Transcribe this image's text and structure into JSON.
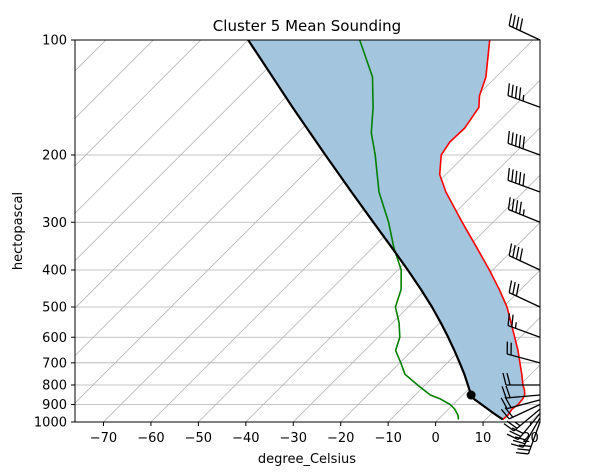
{
  "chart_data": {
    "type": "skew-t",
    "title": "Cluster 5 Mean Sounding",
    "xlabel": "degree_Celsius",
    "ylabel": "hectopascal",
    "xlim": [
      -76,
      22
    ],
    "ylim": [
      1000,
      100
    ],
    "y_scale": "log",
    "x_ticks": [
      -70,
      -60,
      -50,
      -40,
      -30,
      -20,
      -10,
      0,
      10,
      20
    ],
    "y_ticks": [
      1000,
      900,
      800,
      700,
      600,
      500,
      400,
      300,
      200,
      100
    ],
    "grid": true,
    "colors": {
      "temperature": "#ff0000",
      "dewpoint": "#008000",
      "parcel": "#000000",
      "cape_fill": "#a3c6de",
      "grid": "#b0b0b0",
      "isotherm": "#b3b3b3"
    },
    "temperature": [
      {
        "p": 985,
        "t": 13.6
      },
      {
        "p": 960,
        "t": 13.8
      },
      {
        "p": 925,
        "t": 13.4
      },
      {
        "p": 900,
        "t": 13.7
      },
      {
        "p": 870,
        "t": 13.5
      },
      {
        "p": 850,
        "t": 13.1
      },
      {
        "p": 825,
        "t": 12.0
      },
      {
        "p": 800,
        "t": 10.6
      },
      {
        "p": 750,
        "t": 8.1
      },
      {
        "p": 700,
        "t": 5.3
      },
      {
        "p": 650,
        "t": 2.3
      },
      {
        "p": 600,
        "t": -1.2
      },
      {
        "p": 550,
        "t": -5.0
      },
      {
        "p": 500,
        "t": -9.2
      },
      {
        "p": 450,
        "t": -14.5
      },
      {
        "p": 400,
        "t": -20.7
      },
      {
        "p": 350,
        "t": -28.0
      },
      {
        "p": 300,
        "t": -36.5
      },
      {
        "p": 250,
        "t": -46.3
      },
      {
        "p": 225,
        "t": -51.3
      },
      {
        "p": 200,
        "t": -55.1
      },
      {
        "p": 185,
        "t": -56.0
      },
      {
        "p": 170,
        "t": -55.8
      },
      {
        "p": 150,
        "t": -57.2
      },
      {
        "p": 140,
        "t": -59.5
      },
      {
        "p": 125,
        "t": -62.1
      },
      {
        "p": 100,
        "t": -69.1
      }
    ],
    "dewpoint": [
      {
        "p": 985,
        "t": 4.3
      },
      {
        "p": 960,
        "t": 3.3
      },
      {
        "p": 925,
        "t": 1.3
      },
      {
        "p": 900,
        "t": -0.6
      },
      {
        "p": 870,
        "t": -3.9
      },
      {
        "p": 850,
        "t": -6.8
      },
      {
        "p": 800,
        "t": -11.6
      },
      {
        "p": 750,
        "t": -16.5
      },
      {
        "p": 700,
        "t": -19.8
      },
      {
        "p": 650,
        "t": -23.5
      },
      {
        "p": 600,
        "t": -25.4
      },
      {
        "p": 550,
        "t": -28.6
      },
      {
        "p": 500,
        "t": -32.7
      },
      {
        "p": 450,
        "t": -35.2
      },
      {
        "p": 400,
        "t": -39.3
      },
      {
        "p": 350,
        "t": -45.5
      },
      {
        "p": 300,
        "t": -52.0
      },
      {
        "p": 250,
        "t": -60.4
      },
      {
        "p": 200,
        "t": -69.0
      },
      {
        "p": 175,
        "t": -74.5
      },
      {
        "p": 150,
        "t": -79.5
      },
      {
        "p": 125,
        "t": -86.0
      },
      {
        "p": 100,
        "t": -96.5
      }
    ],
    "parcel": [
      {
        "p": 985,
        "t": 13.6
      },
      {
        "p": 950,
        "t": 10.5
      },
      {
        "p": 900,
        "t": 6.0
      },
      {
        "p": 870,
        "t": 3.2
      },
      {
        "p": 850,
        "t": 1.8
      },
      {
        "p": 800,
        "t": -1.0
      },
      {
        "p": 750,
        "t": -4.0
      },
      {
        "p": 700,
        "t": -7.4
      },
      {
        "p": 650,
        "t": -11.1
      },
      {
        "p": 600,
        "t": -15.2
      },
      {
        "p": 550,
        "t": -19.8
      },
      {
        "p": 500,
        "t": -25.0
      },
      {
        "p": 450,
        "t": -31.0
      },
      {
        "p": 400,
        "t": -37.9
      },
      {
        "p": 350,
        "t": -45.9
      },
      {
        "p": 300,
        "t": -55.2
      },
      {
        "p": 250,
        "t": -66.2
      },
      {
        "p": 200,
        "t": -79.5
      },
      {
        "p": 150,
        "t": -96.5
      },
      {
        "p": 100,
        "t": -120.0
      }
    ],
    "lcl": {
      "p": 850,
      "t": 1.8
    },
    "wind_barbs": [
      {
        "p": 1000,
        "speed_kt": 30,
        "dir_deg": 200
      },
      {
        "p": 975,
        "speed_kt": 30,
        "dir_deg": 210
      },
      {
        "p": 950,
        "speed_kt": 30,
        "dir_deg": 220
      },
      {
        "p": 925,
        "speed_kt": 25,
        "dir_deg": 230
      },
      {
        "p": 900,
        "speed_kt": 20,
        "dir_deg": 245
      },
      {
        "p": 875,
        "speed_kt": 20,
        "dir_deg": 255
      },
      {
        "p": 850,
        "speed_kt": 20,
        "dir_deg": 265
      },
      {
        "p": 800,
        "speed_kt": 20,
        "dir_deg": 270
      },
      {
        "p": 700,
        "speed_kt": 20,
        "dir_deg": 285
      },
      {
        "p": 600,
        "speed_kt": 25,
        "dir_deg": 290
      },
      {
        "p": 500,
        "speed_kt": 30,
        "dir_deg": 295
      },
      {
        "p": 400,
        "speed_kt": 40,
        "dir_deg": 295
      },
      {
        "p": 300,
        "speed_kt": 45,
        "dir_deg": 292
      },
      {
        "p": 250,
        "speed_kt": 50,
        "dir_deg": 290
      },
      {
        "p": 200,
        "speed_kt": 50,
        "dir_deg": 290
      },
      {
        "p": 150,
        "speed_kt": 45,
        "dir_deg": 290
      },
      {
        "p": 100,
        "speed_kt": 40,
        "dir_deg": 295
      }
    ]
  }
}
